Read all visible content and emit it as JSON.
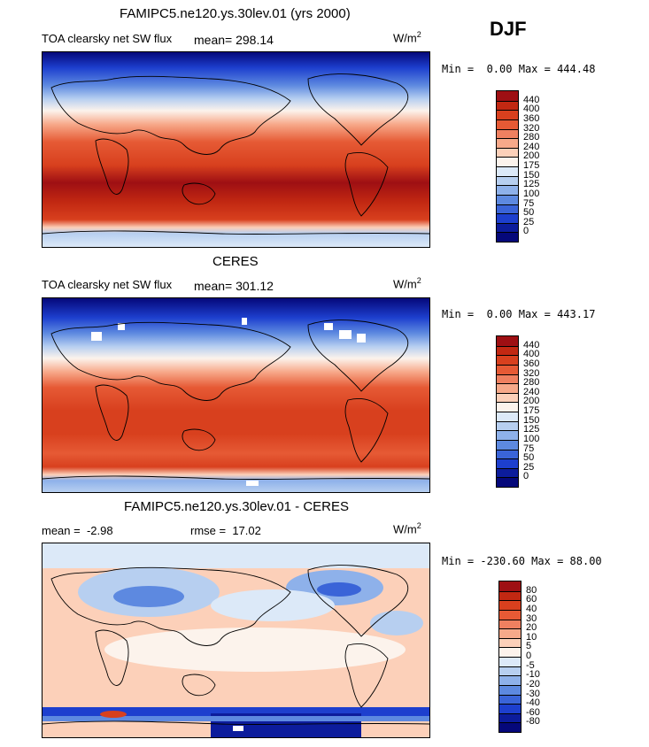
{
  "season": "DJF",
  "chart_data": [
    {
      "type": "heatmap",
      "title": "FAMIPC5.ne120.ys.30lev.01 (yrs 2000)",
      "variable_label": "TOA clearsky net SW flux",
      "stat_label": "mean= 298.14",
      "units_base": "W/m",
      "units_exp": "2",
      "min_label": "Min =",
      "min_value": "0.00",
      "max_label": "Max =",
      "max_value": "444.48",
      "colorbar_levels": [
        "440",
        "400",
        "360",
        "320",
        "280",
        "240",
        "200",
        "175",
        "150",
        "125",
        "100",
        "75",
        "50",
        "25",
        "0"
      ],
      "colorbar_colors": [
        "#9e0f13",
        "#c22812",
        "#d8401e",
        "#e65a35",
        "#ef8060",
        "#f7a98a",
        "#fcd0b9",
        "#fcf3ec",
        "#dce9f8",
        "#b7cff0",
        "#8eb1ea",
        "#5d89e0",
        "#3a64d8",
        "#1d3fce",
        "#0c1c9c",
        "#05087a"
      ]
    },
    {
      "type": "heatmap",
      "title": "CERES",
      "variable_label": "TOA clearsky net SW flux",
      "stat_label": "mean= 301.12",
      "units_base": "W/m",
      "units_exp": "2",
      "min_label": "Min =",
      "min_value": "0.00",
      "max_label": "Max =",
      "max_value": "443.17",
      "colorbar_levels": [
        "440",
        "400",
        "360",
        "320",
        "280",
        "240",
        "200",
        "175",
        "150",
        "125",
        "100",
        "75",
        "50",
        "25",
        "0"
      ],
      "colorbar_colors": [
        "#9e0f13",
        "#c22812",
        "#d8401e",
        "#e65a35",
        "#ef8060",
        "#f7a98a",
        "#fcd0b9",
        "#fcf3ec",
        "#dce9f8",
        "#b7cff0",
        "#8eb1ea",
        "#5d89e0",
        "#3a64d8",
        "#1d3fce",
        "#0c1c9c",
        "#05087a"
      ]
    },
    {
      "type": "heatmap",
      "title": "FAMIPC5.ne120.ys.30lev.01 - CERES",
      "mean_label": "mean =",
      "mean_value": "-2.98",
      "rmse_label": "rmse =",
      "rmse_value": "17.02",
      "units_base": "W/m",
      "units_exp": "2",
      "min_label": "Min =",
      "min_value": "-230.60",
      "max_label": "Max =",
      "max_value": "88.00",
      "colorbar_levels": [
        "80",
        "60",
        "40",
        "30",
        "20",
        "10",
        "5",
        "0",
        "-5",
        "-10",
        "-20",
        "-30",
        "-40",
        "-60",
        "-80"
      ],
      "colorbar_colors": [
        "#9e0f13",
        "#c22812",
        "#d8401e",
        "#e65a35",
        "#ef8060",
        "#f7a98a",
        "#fcd0b9",
        "#fcf3ec",
        "#dce9f8",
        "#b7cff0",
        "#8eb1ea",
        "#5d89e0",
        "#3a64d8",
        "#1d3fce",
        "#0c1c9c",
        "#05087a"
      ]
    }
  ]
}
